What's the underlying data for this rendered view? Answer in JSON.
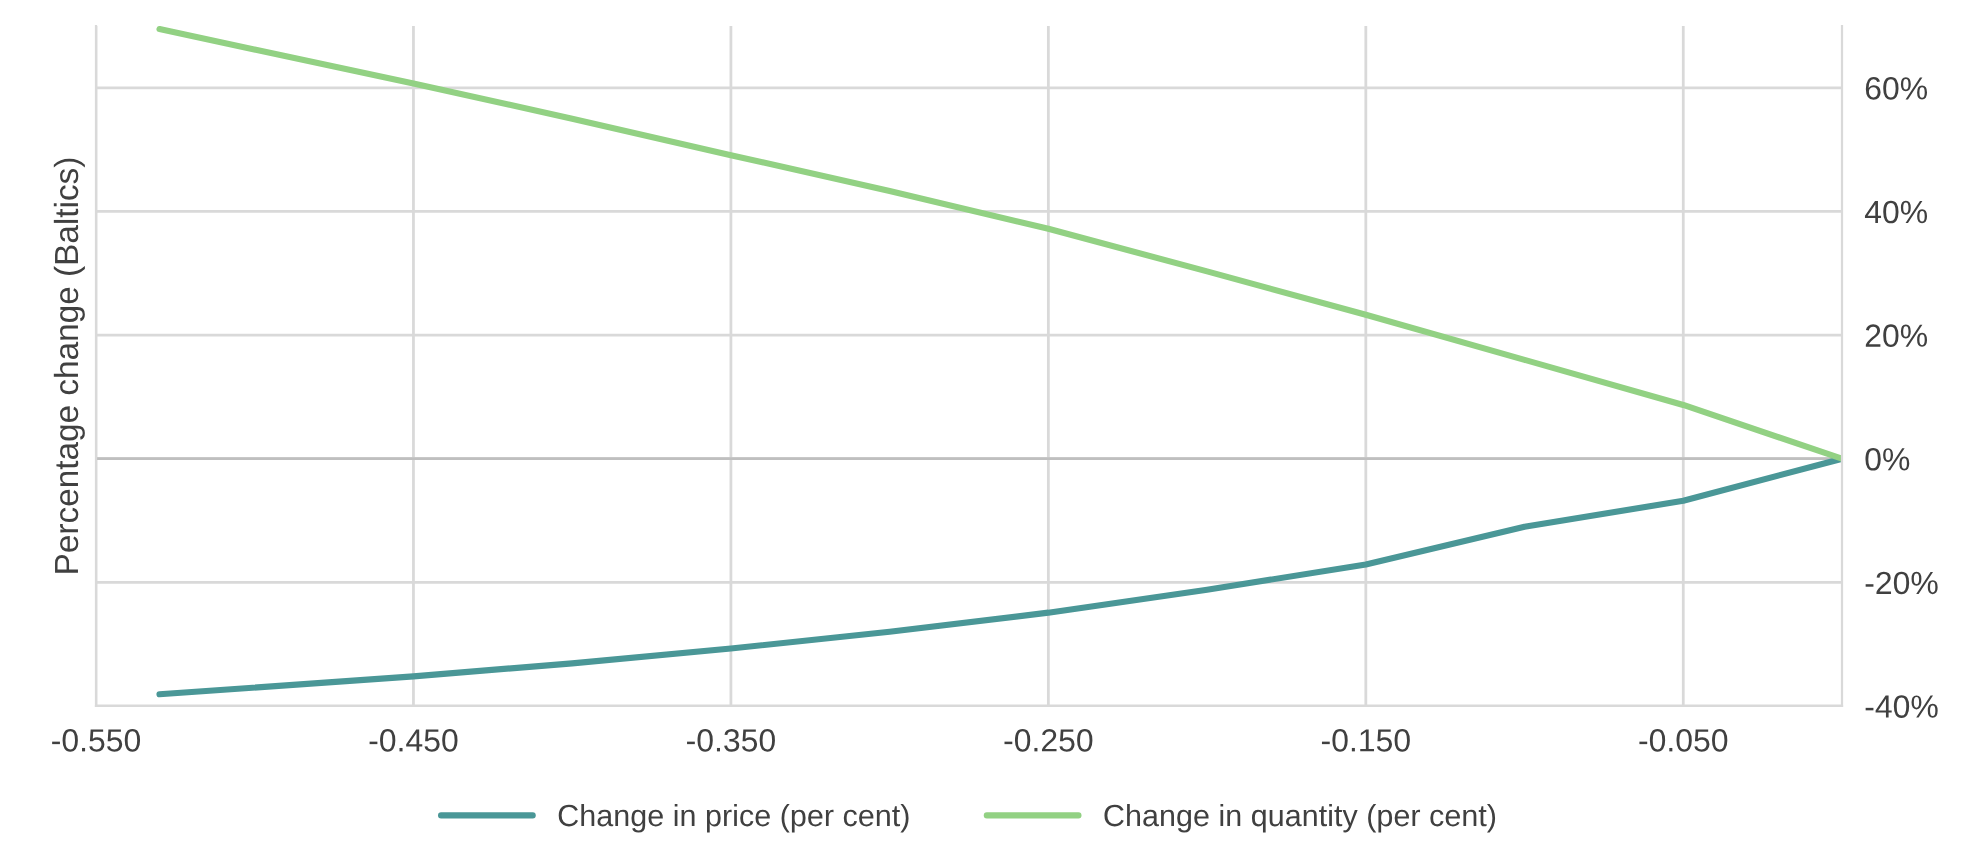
{
  "chart_data": {
    "type": "line",
    "ylabel": "Percentage change (Baltics)",
    "x": [
      -0.53,
      -0.45,
      -0.4,
      -0.35,
      -0.3,
      -0.25,
      -0.2,
      -0.15,
      -0.1,
      -0.05,
      0
    ],
    "series": [
      {
        "name": "Change in price (per cent)",
        "color": "#4a9797",
        "values": [
          -38.1,
          -35.2,
          -33.1,
          -30.7,
          -28,
          -24.9,
          -21.2,
          -17.1,
          -11,
          -6.8,
          0
        ]
      },
      {
        "name": "Change in quantity (per cent)",
        "color": "#92d183",
        "values": [
          69.5,
          60.7,
          55,
          49.1,
          43.3,
          37.2,
          30.3,
          23.3,
          16,
          8.7,
          0
        ]
      }
    ],
    "xlim": [
      -0.55,
      0
    ],
    "xticks": [
      {
        "value": -0.55,
        "label": "-0.550"
      },
      {
        "value": -0.45,
        "label": "-0.450"
      },
      {
        "value": -0.35,
        "label": "-0.350"
      },
      {
        "value": -0.25,
        "label": "-0.250"
      },
      {
        "value": -0.15,
        "label": "-0.150"
      },
      {
        "value": -0.05,
        "label": "-0.050"
      }
    ],
    "ylim": [
      -40,
      70
    ],
    "yticks": [
      {
        "value": -40,
        "label": "-40%"
      },
      {
        "value": -20,
        "label": "-20%"
      },
      {
        "value": 0,
        "label": "0%"
      },
      {
        "value": 20,
        "label": "20%"
      },
      {
        "value": 40,
        "label": "40%"
      },
      {
        "value": 60,
        "label": "60%"
      }
    ],
    "grid": true,
    "legend": "bottom",
    "marker": "none",
    "line_style": "solid"
  }
}
